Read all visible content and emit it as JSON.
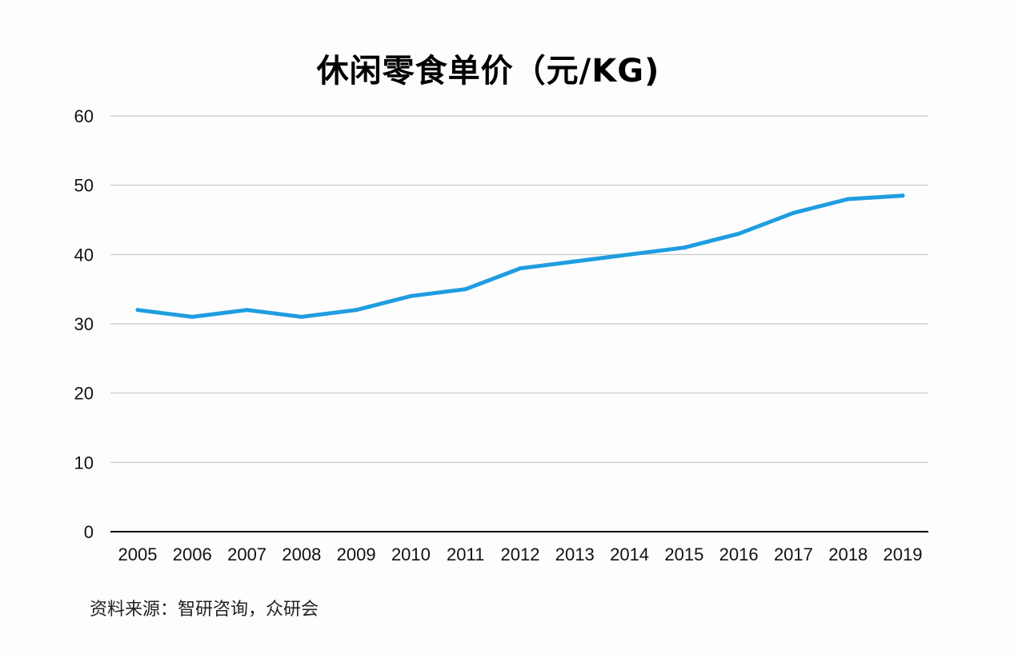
{
  "chart_data": {
    "type": "line",
    "title": "休闲零食单价（元/KG)",
    "xlabel": "",
    "ylabel": "",
    "categories": [
      "2005",
      "2006",
      "2007",
      "2008",
      "2009",
      "2010",
      "2011",
      "2012",
      "2013",
      "2014",
      "2015",
      "2016",
      "2017",
      "2018",
      "2019"
    ],
    "series": [
      {
        "values": [
          32,
          31,
          32,
          31,
          32,
          34,
          35,
          38,
          39,
          40,
          41,
          43,
          46,
          48,
          48.5
        ]
      }
    ],
    "ylim": [
      0,
      60
    ],
    "yticks": [
      0,
      10,
      20,
      30,
      40,
      50,
      60
    ],
    "grid": true,
    "legend": "none",
    "line_color": "#1f9de0",
    "grid_color": "#bdbdbd",
    "axis_color": "#000000"
  },
  "source": "资料来源：智研咨询，众研会"
}
